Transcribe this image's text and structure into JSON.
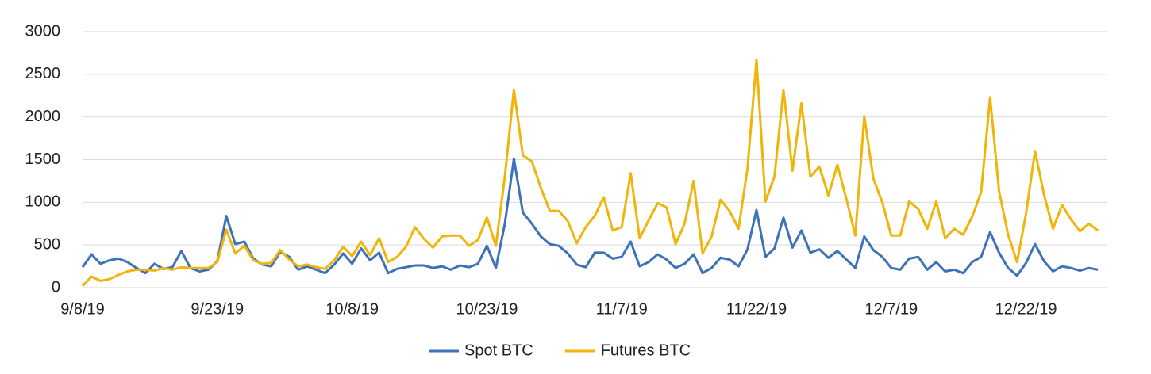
{
  "chart_data": {
    "type": "line",
    "x": [
      "9/8/19",
      "9/9/19",
      "9/10/19",
      "9/11/19",
      "9/12/19",
      "9/13/19",
      "9/14/19",
      "9/15/19",
      "9/16/19",
      "9/17/19",
      "9/18/19",
      "9/19/19",
      "9/20/19",
      "9/21/19",
      "9/22/19",
      "9/23/19",
      "9/24/19",
      "9/25/19",
      "9/26/19",
      "9/27/19",
      "9/28/19",
      "9/29/19",
      "9/30/19",
      "10/1/19",
      "10/2/19",
      "10/3/19",
      "10/4/19",
      "10/5/19",
      "10/6/19",
      "10/7/19",
      "10/8/19",
      "10/9/19",
      "10/10/19",
      "10/11/19",
      "10/12/19",
      "10/13/19",
      "10/14/19",
      "10/15/19",
      "10/16/19",
      "10/17/19",
      "10/18/19",
      "10/19/19",
      "10/20/19",
      "10/21/19",
      "10/22/19",
      "10/23/19",
      "10/24/19",
      "10/25/19",
      "10/26/19",
      "10/27/19",
      "10/28/19",
      "10/29/19",
      "10/30/19",
      "10/31/19",
      "11/1/19",
      "11/2/19",
      "11/3/19",
      "11/4/19",
      "11/5/19",
      "11/6/19",
      "11/7/19",
      "11/8/19",
      "11/9/19",
      "11/10/19",
      "11/11/19",
      "11/12/19",
      "11/13/19",
      "11/14/19",
      "11/15/19",
      "11/16/19",
      "11/17/19",
      "11/18/19",
      "11/19/19",
      "11/20/19",
      "11/21/19",
      "11/22/19",
      "11/23/19",
      "11/24/19",
      "11/25/19",
      "11/26/19",
      "11/27/19",
      "11/28/19",
      "11/29/19",
      "11/30/19",
      "12/1/19",
      "12/2/19",
      "12/3/19",
      "12/4/19",
      "12/5/19",
      "12/6/19",
      "12/7/19",
      "12/8/19",
      "12/9/19",
      "12/10/19",
      "12/11/19",
      "12/12/19",
      "12/13/19",
      "12/14/19",
      "12/15/19",
      "12/16/19",
      "12/17/19",
      "12/18/19",
      "12/19/19",
      "12/20/19",
      "12/21/19",
      "12/22/19",
      "12/23/19",
      "12/24/19",
      "12/25/19",
      "12/26/19",
      "12/27/19",
      "12/28/19",
      "12/29/19",
      "12/30/19"
    ],
    "series": [
      {
        "name": "Spot BTC",
        "color": "#3d72b8",
        "values": [
          240,
          390,
          280,
          320,
          340,
          300,
          230,
          170,
          280,
          220,
          240,
          430,
          230,
          190,
          210,
          310,
          840,
          510,
          540,
          340,
          270,
          250,
          420,
          360,
          210,
          250,
          210,
          170,
          270,
          400,
          280,
          460,
          320,
          410,
          170,
          220,
          240,
          260,
          260,
          230,
          250,
          210,
          260,
          240,
          280,
          490,
          230,
          750,
          1510,
          880,
          750,
          600,
          510,
          490,
          400,
          270,
          240,
          410,
          410,
          340,
          360,
          540,
          250,
          300,
          390,
          330,
          230,
          280,
          390,
          170,
          230,
          350,
          330,
          250,
          450,
          910,
          360,
          460,
          820,
          470,
          670,
          410,
          450,
          350,
          430,
          330,
          230,
          600,
          440,
          360,
          230,
          210,
          340,
          360,
          210,
          300,
          190,
          210,
          170,
          300,
          360,
          650,
          410,
          230,
          140,
          290,
          510,
          310,
          190,
          250,
          230,
          200,
          230,
          210
        ]
      },
      {
        "name": "Futures BTC",
        "color": "#f0b50a",
        "values": [
          20,
          130,
          80,
          100,
          150,
          190,
          210,
          210,
          200,
          230,
          210,
          240,
          230,
          230,
          230,
          300,
          680,
          400,
          490,
          320,
          280,
          290,
          440,
          330,
          250,
          270,
          240,
          220,
          320,
          480,
          370,
          540,
          380,
          580,
          300,
          360,
          480,
          710,
          570,
          470,
          600,
          610,
          610,
          490,
          560,
          820,
          490,
          1300,
          2320,
          1550,
          1480,
          1170,
          900,
          900,
          780,
          520,
          710,
          840,
          1060,
          670,
          710,
          1340,
          580,
          790,
          990,
          940,
          510,
          750,
          1250,
          400,
          600,
          1030,
          900,
          690,
          1400,
          2670,
          1010,
          1300,
          2320,
          1370,
          2160,
          1300,
          1420,
          1080,
          1440,
          1040,
          610,
          2010,
          1280,
          1000,
          610,
          610,
          1010,
          920,
          690,
          1010,
          580,
          690,
          620,
          830,
          1120,
          2230,
          1130,
          620,
          300,
          870,
          1600,
          1090,
          690,
          970,
          800,
          660,
          750,
          670
        ]
      }
    ],
    "ylim": [
      0,
      3000
    ],
    "yticks": [
      0,
      500,
      1000,
      1500,
      2000,
      2500,
      3000
    ],
    "grid": true,
    "legend": "bottom"
  }
}
